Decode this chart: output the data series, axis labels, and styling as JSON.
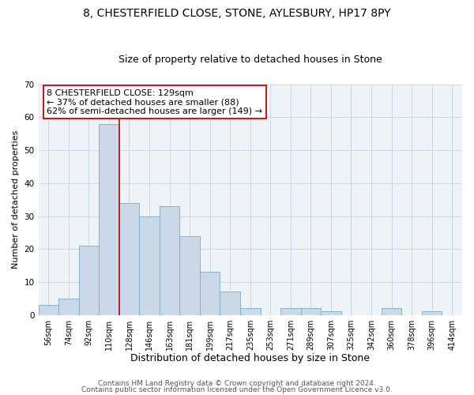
{
  "title": "8, CHESTERFIELD CLOSE, STONE, AYLESBURY, HP17 8PY",
  "subtitle": "Size of property relative to detached houses in Stone",
  "xlabel": "Distribution of detached houses by size in Stone",
  "ylabel": "Number of detached properties",
  "bar_labels": [
    "56sqm",
    "74sqm",
    "92sqm",
    "110sqm",
    "128sqm",
    "146sqm",
    "163sqm",
    "181sqm",
    "199sqm",
    "217sqm",
    "235sqm",
    "253sqm",
    "271sqm",
    "289sqm",
    "307sqm",
    "325sqm",
    "342sqm",
    "360sqm",
    "378sqm",
    "396sqm",
    "414sqm"
  ],
  "bar_heights": [
    3,
    5,
    21,
    58,
    34,
    30,
    33,
    24,
    13,
    7,
    2,
    0,
    2,
    2,
    1,
    0,
    0,
    2,
    0,
    1,
    0
  ],
  "bar_color": "#c9d9e8",
  "bar_edge_color": "#7aaac8",
  "vline_x_index": 3,
  "vline_color": "#cc0000",
  "ylim": [
    0,
    70
  ],
  "yticks": [
    0,
    10,
    20,
    30,
    40,
    50,
    60,
    70
  ],
  "annotation_text": "8 CHESTERFIELD CLOSE: 129sqm\n← 37% of detached houses are smaller (88)\n62% of semi-detached houses are larger (149) →",
  "annotation_box_color": "#ffffff",
  "annotation_box_edge": "#cc0000",
  "footer1": "Contains HM Land Registry data © Crown copyright and database right 2024.",
  "footer2": "Contains public sector information licensed under the Open Government Licence v3.0.",
  "title_fontsize": 10,
  "subtitle_fontsize": 9,
  "xlabel_fontsize": 9,
  "ylabel_fontsize": 8,
  "tick_fontsize": 7,
  "annotation_fontsize": 8,
  "footer_fontsize": 6.5,
  "grid_color": "#ccd8e8",
  "background_color": "#eef3f8"
}
